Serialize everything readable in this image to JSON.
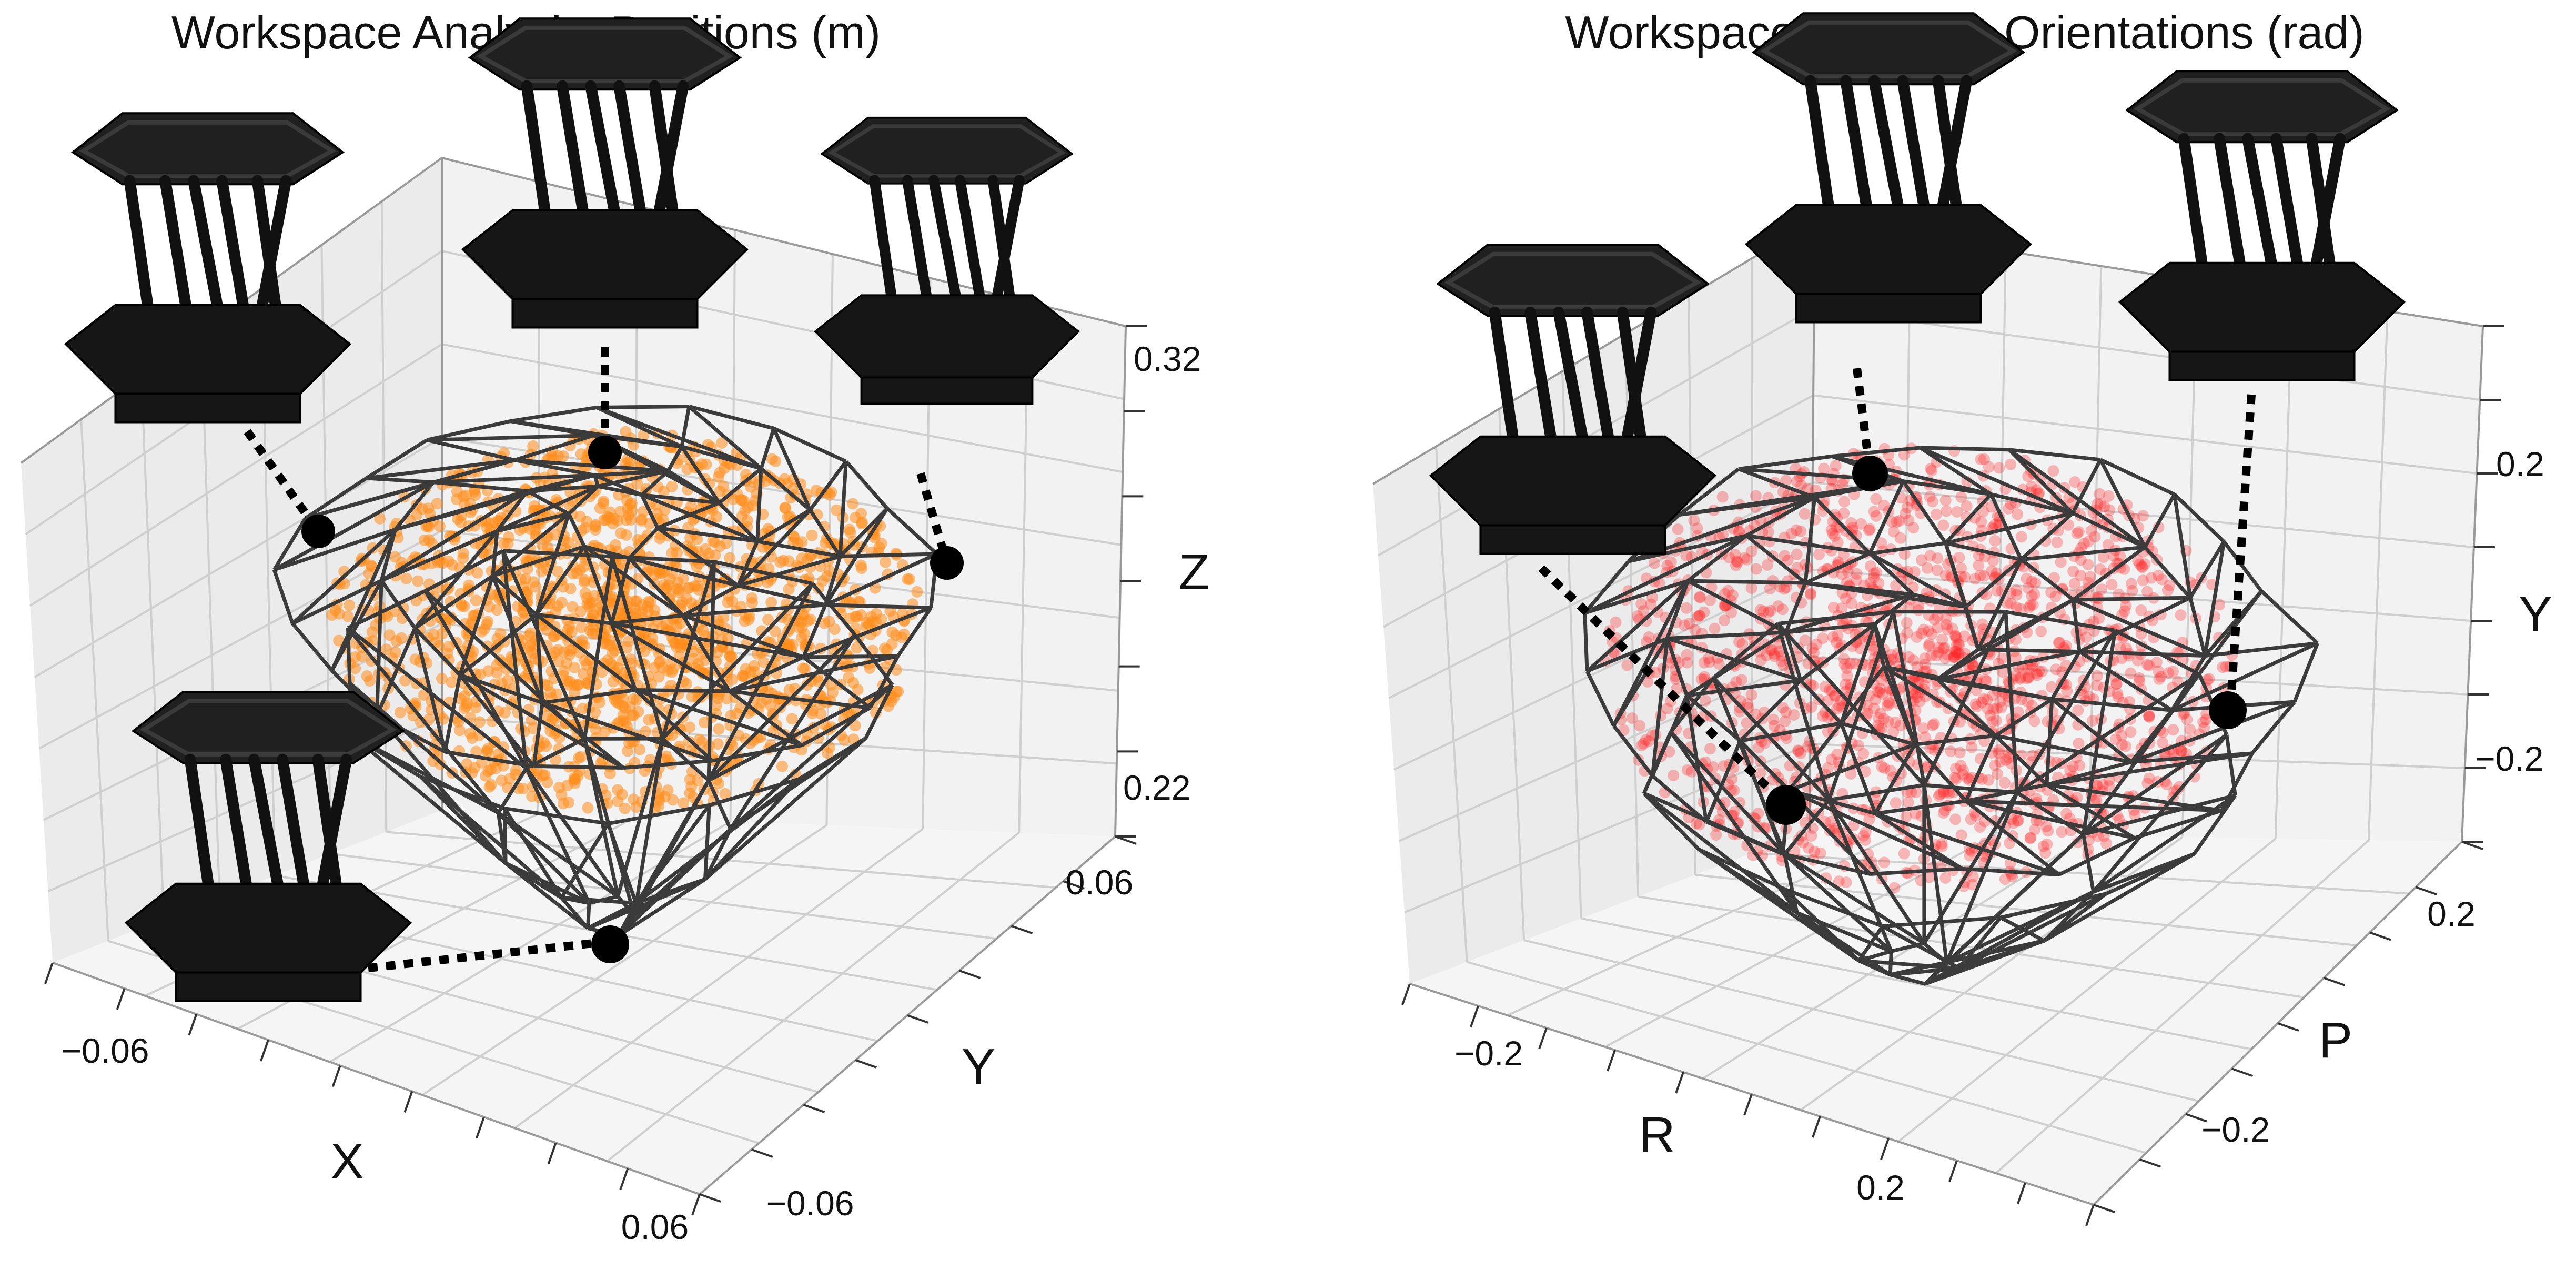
{
  "chart_data": [
    {
      "type": "scatter",
      "title": "Workspace Analysis: Positions (m)",
      "xlabel": "X",
      "ylabel": "Y",
      "zlabel": "Z",
      "x_ticks": [
        "−0.06",
        "0.06"
      ],
      "y_ticks": [
        "0.06",
        "−0.06"
      ],
      "z_ticks": [
        "0.32",
        "0.22"
      ],
      "xlim": [
        -0.08,
        0.08
      ],
      "ylim": [
        -0.08,
        0.08
      ],
      "zlim": [
        0.2,
        0.34
      ],
      "grid": true,
      "point_color": "#ff8c1a",
      "mesh_color": "#3b3b3b",
      "overlay": "convex hull wireframe",
      "annotated_vertices": 4
    },
    {
      "type": "scatter",
      "title": "Workspace Analysis: Orientations (rad)",
      "xlabel": "R",
      "ylabel": "P",
      "zlabel": "Y",
      "x_ticks": [
        "−0.2",
        "0.2"
      ],
      "y_ticks": [
        "0.2",
        "−0.2"
      ],
      "z_ticks": [
        "0.2",
        "−0.2"
      ],
      "xlim": [
        -0.3,
        0.3
      ],
      "ylim": [
        -0.3,
        0.3
      ],
      "zlim": [
        -0.3,
        0.3
      ],
      "grid": true,
      "point_color": "#ff2020",
      "mesh_color": "#3b3b3b",
      "overlay": "convex hull wireframe",
      "annotated_vertices": 4
    }
  ]
}
